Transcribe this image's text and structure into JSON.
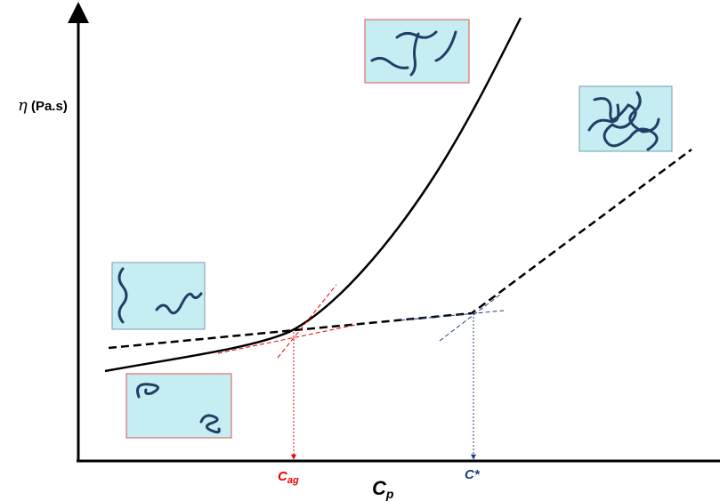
{
  "axes": {
    "y_label": {
      "symbol": "η",
      "unit": "(Pa.s)"
    },
    "x_label": {
      "main": "C",
      "sub": "p"
    }
  },
  "markers": [
    {
      "main": "C",
      "sub": "ag"
    },
    {
      "main": "C*"
    }
  ]
}
